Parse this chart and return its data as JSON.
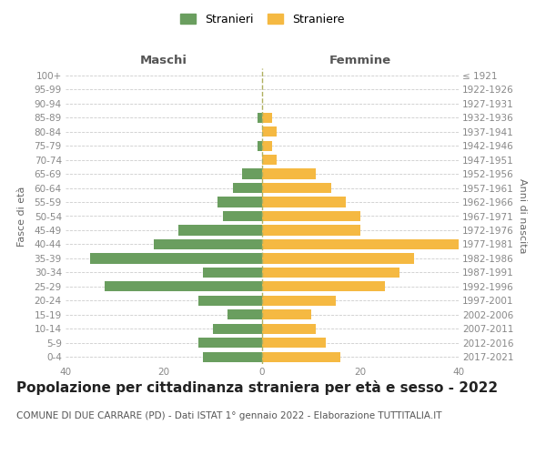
{
  "age_groups": [
    "100+",
    "95-99",
    "90-94",
    "85-89",
    "80-84",
    "75-79",
    "70-74",
    "65-69",
    "60-64",
    "55-59",
    "50-54",
    "45-49",
    "40-44",
    "35-39",
    "30-34",
    "25-29",
    "20-24",
    "15-19",
    "10-14",
    "5-9",
    "0-4"
  ],
  "birth_years": [
    "≤ 1921",
    "1922-1926",
    "1927-1931",
    "1932-1936",
    "1937-1941",
    "1942-1946",
    "1947-1951",
    "1952-1956",
    "1957-1961",
    "1962-1966",
    "1967-1971",
    "1972-1976",
    "1977-1981",
    "1982-1986",
    "1987-1991",
    "1992-1996",
    "1997-2001",
    "2002-2006",
    "2007-2011",
    "2012-2016",
    "2017-2021"
  ],
  "males": [
    0,
    0,
    0,
    1,
    0,
    1,
    0,
    4,
    6,
    9,
    8,
    17,
    22,
    35,
    12,
    32,
    13,
    7,
    10,
    13,
    12
  ],
  "females": [
    0,
    0,
    0,
    2,
    3,
    2,
    3,
    11,
    14,
    17,
    20,
    20,
    40,
    31,
    28,
    25,
    15,
    10,
    11,
    13,
    16
  ],
  "male_color": "#6a9e5f",
  "female_color": "#f5b942",
  "background_color": "#ffffff",
  "grid_color": "#cccccc",
  "title": "Popolazione per cittadinanza straniera per età e sesso - 2022",
  "subtitle": "COMUNE DI DUE CARRARE (PD) - Dati ISTAT 1° gennaio 2022 - Elaborazione TUTTITALIA.IT",
  "ylabel_left": "Fasce di età",
  "ylabel_right": "Anni di nascita",
  "xlabel_left": "Maschi",
  "xlabel_right": "Femmine",
  "legend_male": "Stranieri",
  "legend_female": "Straniere",
  "xlim": 40,
  "tick_color": "#888888",
  "title_fontsize": 11,
  "subtitle_fontsize": 7.5,
  "axis_label_fontsize": 8,
  "tick_fontsize": 7.5,
  "header_fontsize": 9.5
}
